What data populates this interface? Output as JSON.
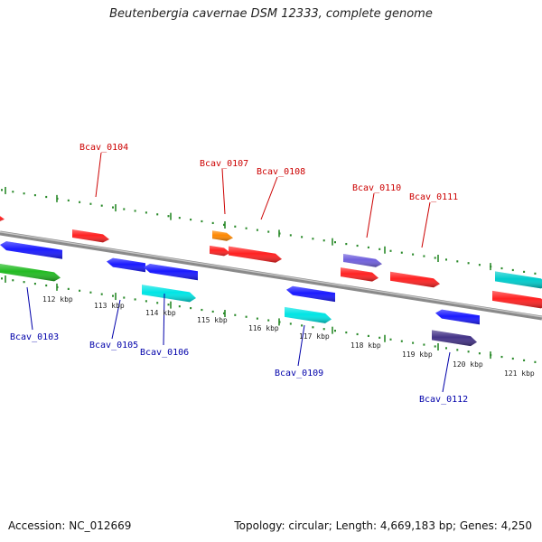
{
  "title": "Beutenbergia cavernae DSM 12333, complete genome",
  "footer": {
    "accession": "Accession: NC_012669",
    "summary": "Topology: circular; Length: 4,669,183 bp; Genes: 4,250"
  },
  "colors": {
    "backbone": "#8a8a8a",
    "tick": "#2a8a2a",
    "label_above": "#cc0000",
    "label_below": "#0000aa"
  },
  "scale_labels": [
    "112 kbp",
    "113 kbp",
    "114 kbp",
    "115 kbp",
    "116 kbp",
    "117 kbp",
    "118 kbp",
    "119 kbp",
    "120 kbp",
    "121 kbp"
  ],
  "genes": [
    {
      "name": "Bcav_0103",
      "color": "#22bb22"
    },
    {
      "name": "Bcav_0104",
      "color": "#ff2222"
    },
    {
      "name": "Bcav_0105",
      "color": "#1a1aff"
    },
    {
      "name": "Bcav_0106",
      "color": "#1a1aff"
    },
    {
      "name": "Bcav_0107",
      "color": "#ff8800"
    },
    {
      "name": "Bcav_0108",
      "color": "#ff2222"
    },
    {
      "name": "Bcav_0109",
      "color": "#1a1aff"
    },
    {
      "name": "Bcav_0110",
      "color": "#7060dd"
    },
    {
      "name": "Bcav_0111",
      "color": "#ff2222"
    },
    {
      "name": "Bcav_0112",
      "color": "#1a1aff"
    }
  ],
  "unlabeled_features": [
    {
      "id": "f-a",
      "color": "#1a1aff"
    },
    {
      "id": "f-b",
      "color": "#ff2222"
    },
    {
      "id": "f-c",
      "color": "#00e5e5"
    },
    {
      "id": "f-d",
      "color": "#ff2222"
    },
    {
      "id": "f-e",
      "color": "#00e5e5"
    },
    {
      "id": "f-f",
      "color": "#ff2222"
    },
    {
      "id": "f-g",
      "color": "#443388"
    },
    {
      "id": "f-h",
      "color": "#00cccc"
    },
    {
      "id": "f-i",
      "color": "#ff2222"
    }
  ]
}
